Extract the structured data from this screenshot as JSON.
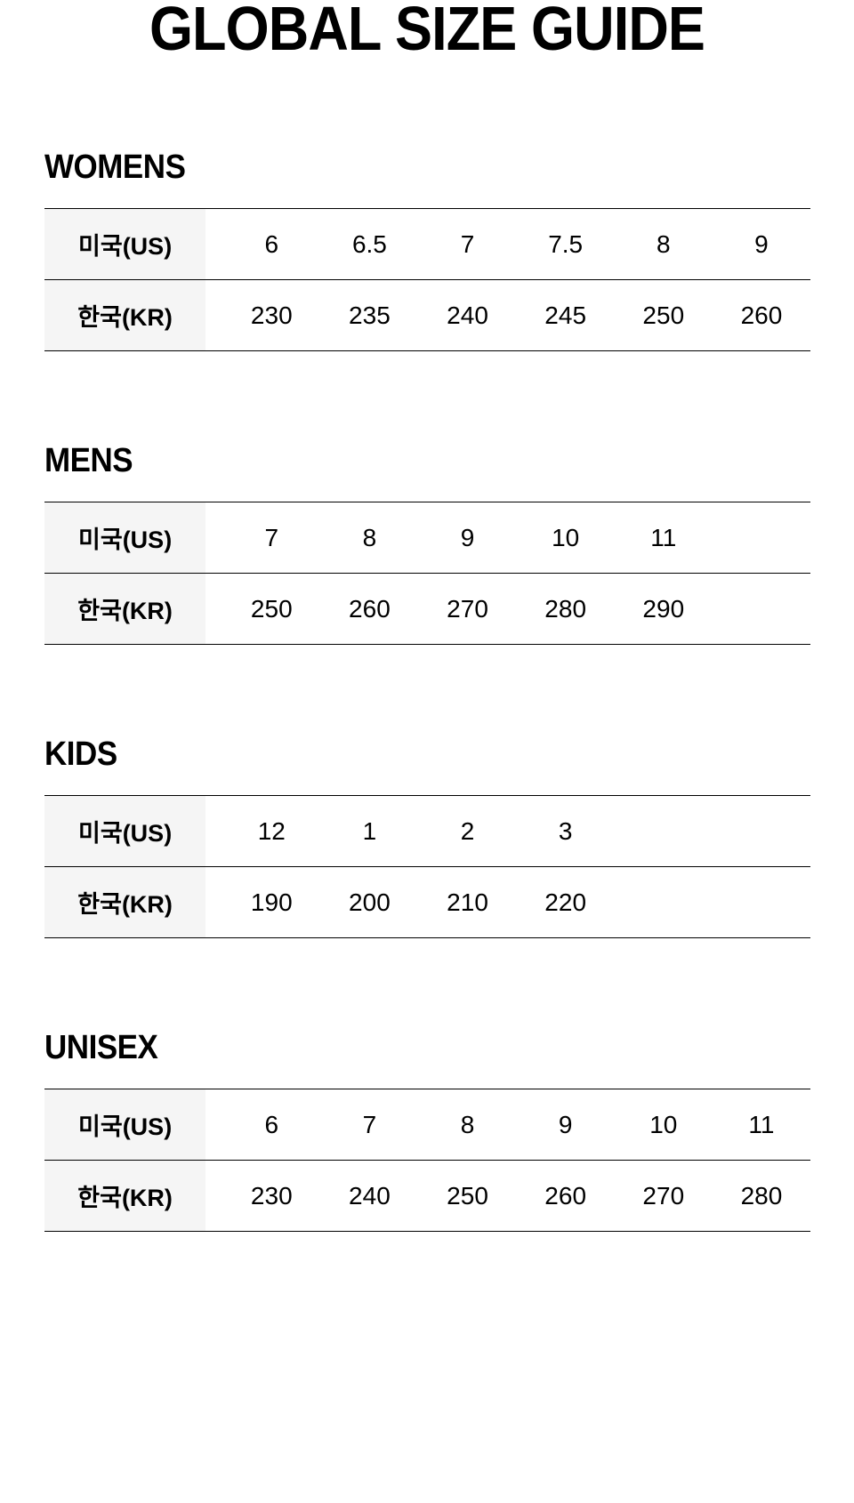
{
  "title": "GLOBAL SIZE GUIDE",
  "row_labels": {
    "us": "미국(US)",
    "kr": "한국(KR)"
  },
  "sections": [
    {
      "name": "WOMENS",
      "us": [
        "6",
        "6.5",
        "7",
        "7.5",
        "8",
        "9"
      ],
      "kr": [
        "230",
        "235",
        "240",
        "245",
        "250",
        "260"
      ]
    },
    {
      "name": "MENS",
      "us": [
        "7",
        "8",
        "9",
        "10",
        "11",
        ""
      ],
      "kr": [
        "250",
        "260",
        "270",
        "280",
        "290",
        ""
      ]
    },
    {
      "name": "KIDS",
      "us": [
        "12",
        "1",
        "2",
        "3",
        "",
        ""
      ],
      "kr": [
        "190",
        "200",
        "210",
        "220",
        "",
        ""
      ]
    },
    {
      "name": "UNISEX",
      "us": [
        "6",
        "7",
        "8",
        "9",
        "10",
        "11"
      ],
      "kr": [
        "230",
        "240",
        "250",
        "260",
        "270",
        "280"
      ]
    }
  ]
}
